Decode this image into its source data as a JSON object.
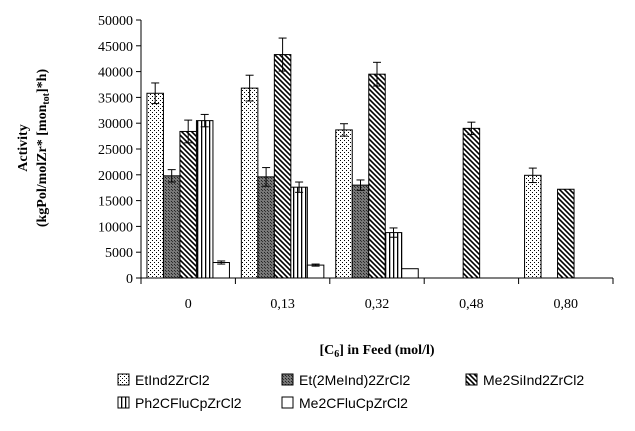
{
  "chart_data": {
    "type": "bar",
    "categories": [
      "0",
      "0,13",
      "0,32",
      "0,48",
      "0,80"
    ],
    "series": [
      {
        "name": "EtInd2ZrCl2",
        "pattern": "dots",
        "values": [
          35800,
          36800,
          28700,
          null,
          19900
        ],
        "errors": [
          2000,
          2500,
          1200,
          null,
          1400
        ]
      },
      {
        "name": "Et(2MeInd)2ZrCl2",
        "pattern": "dark-grid",
        "values": [
          19800,
          19600,
          18000,
          null,
          null
        ],
        "errors": [
          1200,
          1800,
          1000,
          null,
          null
        ]
      },
      {
        "name": "Me2SiInd2ZrCl2",
        "pattern": "diagonal",
        "values": [
          28400,
          43300,
          39500,
          29000,
          17200
        ],
        "errors": [
          2200,
          3200,
          2300,
          1200,
          null
        ]
      },
      {
        "name": "Ph2CFluCpZrCl2",
        "pattern": "vertical",
        "values": [
          30500,
          17600,
          8800,
          null,
          null
        ],
        "errors": [
          1200,
          1000,
          900,
          null,
          null
        ]
      },
      {
        "name": "Me2CFluCpZrCl2",
        "pattern": "white",
        "values": [
          3000,
          2500,
          1800,
          null,
          null
        ],
        "errors": [
          300,
          200,
          null,
          null,
          null
        ]
      }
    ],
    "ylabel_line1": "Activity",
    "ylabel_line2": "(kgPol/molZr* [mon",
    "ylabel_sub": "tot",
    "ylabel_line2_end": "]*h)",
    "xlabel_main": "[C",
    "xlabel_sub": "6",
    "xlabel_end": "] in Feed (mol/l)",
    "ylim": [
      0,
      50000
    ],
    "yticks": [
      0,
      5000,
      10000,
      15000,
      20000,
      25000,
      30000,
      35000,
      40000,
      45000,
      50000
    ],
    "grid": false,
    "legend_position": "bottom"
  }
}
